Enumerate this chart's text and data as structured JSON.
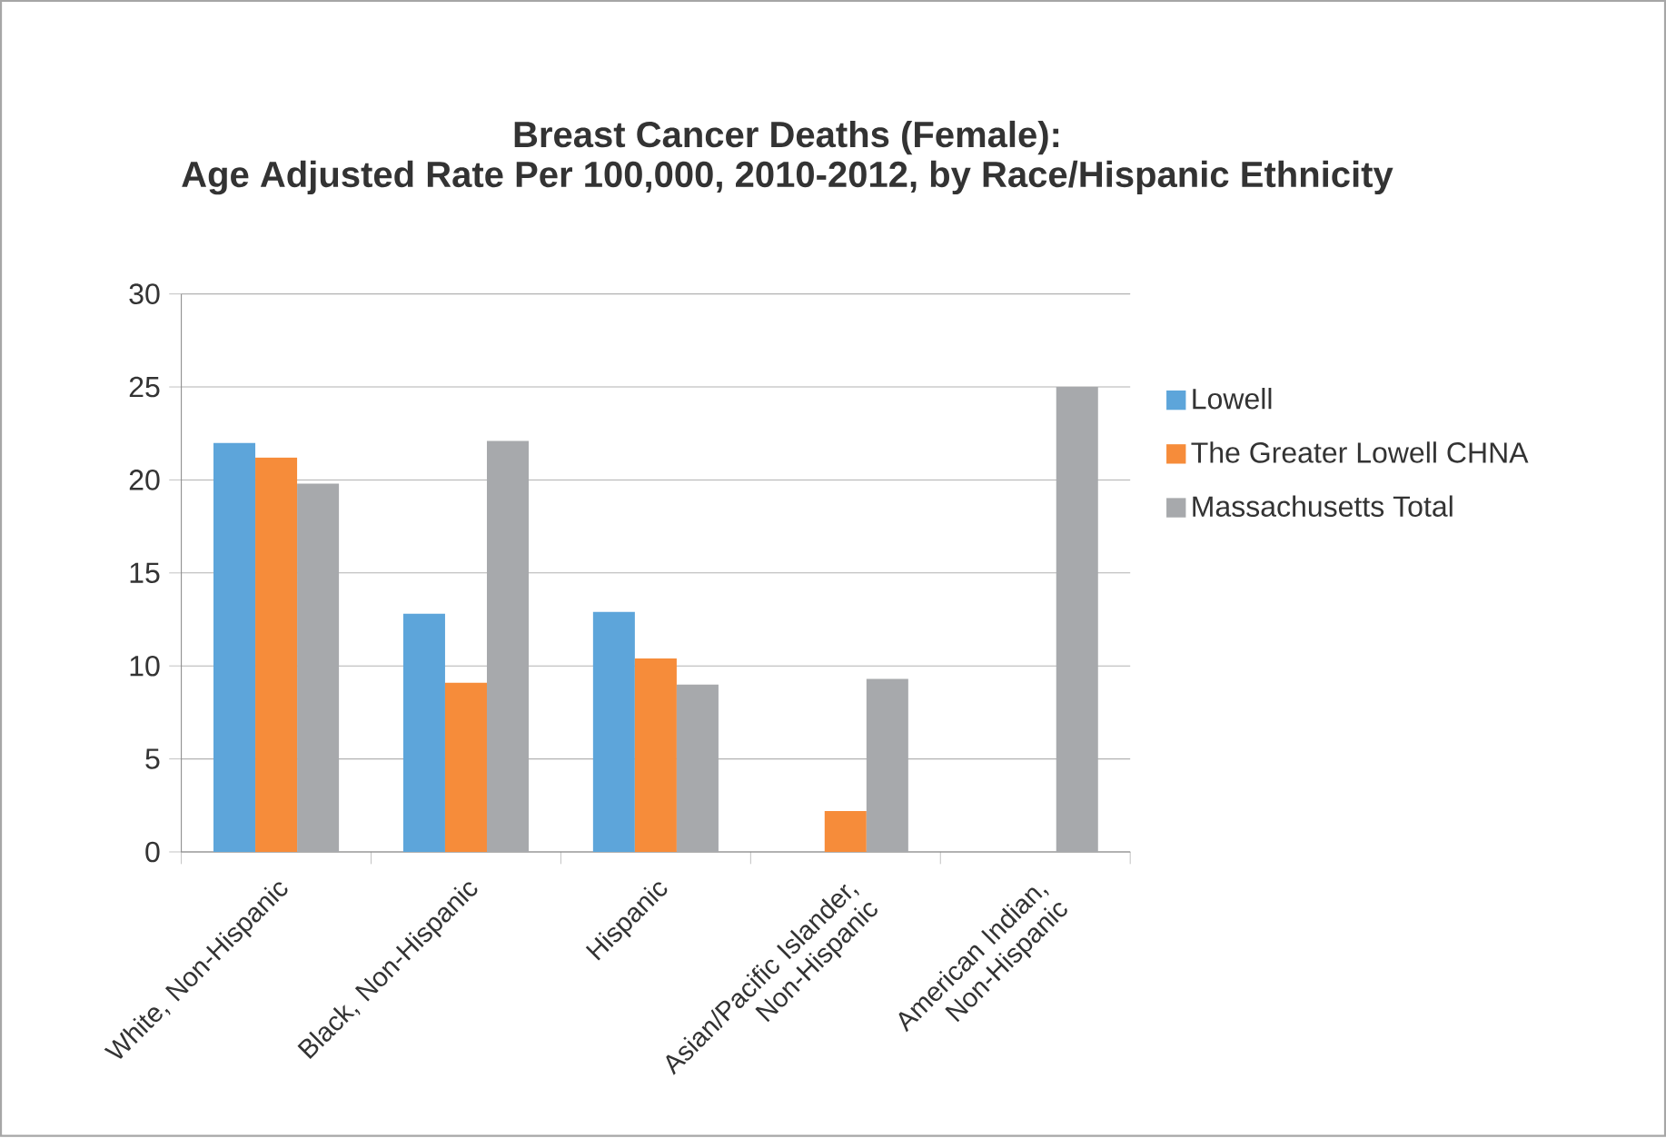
{
  "chart_data": {
    "type": "bar",
    "title": "Breast Cancer Deaths (Female):",
    "subtitle": "Age Adjusted Rate Per 100,000, 2010-2012, by Race/Hispanic Ethnicity",
    "categories": [
      "White, Non-Hispanic",
      "Black, Non-Hispanic",
      "Hispanic",
      "Asian/Pacific Islander, Non-Hispanic",
      "American Indian, Non-Hispanic"
    ],
    "series": [
      {
        "name": "Lowell",
        "color": "#5da5da",
        "values": [
          22.0,
          12.8,
          12.9,
          null,
          null
        ]
      },
      {
        "name": "The Greater Lowell CHNA",
        "color": "#f68c3a",
        "values": [
          21.2,
          9.1,
          10.4,
          2.2,
          null
        ]
      },
      {
        "name": "Massachusetts Total",
        "color": "#a7a9ac",
        "values": [
          19.8,
          22.1,
          9.0,
          9.3,
          25.0
        ]
      }
    ],
    "ylim": [
      0,
      30
    ],
    "yticks": [
      0,
      5,
      10,
      15,
      20,
      25,
      30
    ],
    "grid": "y",
    "legend": "right"
  }
}
